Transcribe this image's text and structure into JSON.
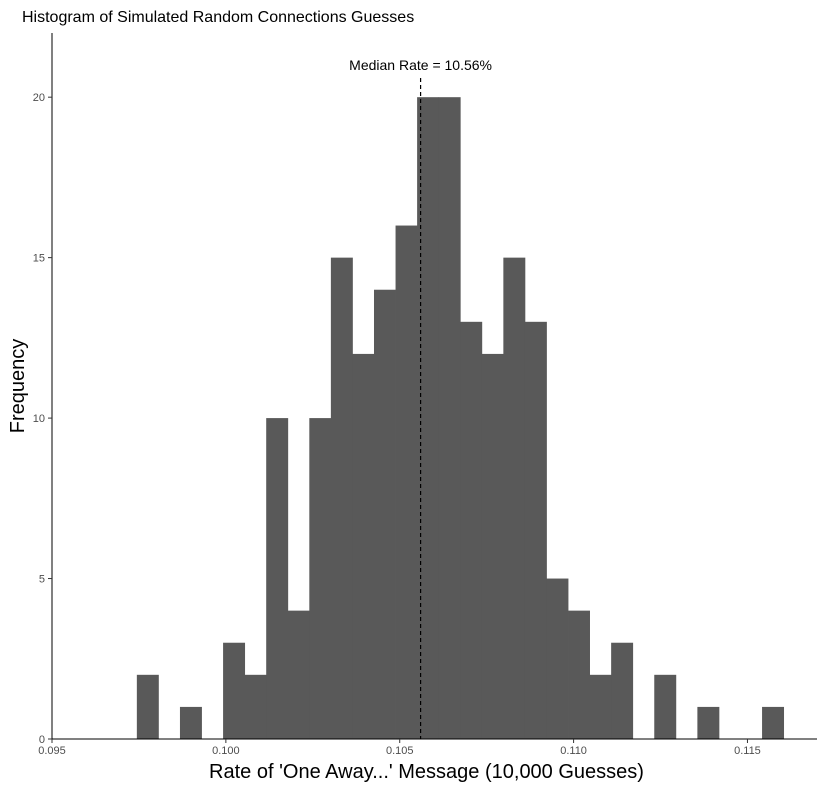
{
  "chart_data": {
    "type": "bar",
    "title": "Histogram of Simulated Random Connections Guesses",
    "xlabel": "Rate of 'One Away...' Message (10,000 Guesses)",
    "ylabel": "Frequency",
    "xlim": [
      0.095,
      0.117
    ],
    "ylim": [
      0,
      22
    ],
    "x_ticks": [
      0.095,
      0.1,
      0.105,
      0.11,
      0.115
    ],
    "x_tick_labels": [
      "0.095",
      "0.100",
      "0.105",
      "0.110",
      "0.115"
    ],
    "y_ticks": [
      0,
      5,
      10,
      15,
      20
    ],
    "y_tick_labels": [
      "0",
      "5",
      "10",
      "15",
      "20"
    ],
    "bin_width": 0.00062,
    "bins": [
      {
        "x": 0.09775,
        "count": 2
      },
      {
        "x": 0.09837,
        "count": 0
      },
      {
        "x": 0.09899,
        "count": 1
      },
      {
        "x": 0.09961,
        "count": 0
      },
      {
        "x": 0.10023,
        "count": 3
      },
      {
        "x": 0.10085,
        "count": 2
      },
      {
        "x": 0.10147,
        "count": 10
      },
      {
        "x": 0.10209,
        "count": 4
      },
      {
        "x": 0.10271,
        "count": 10
      },
      {
        "x": 0.10333,
        "count": 15
      },
      {
        "x": 0.10395,
        "count": 12
      },
      {
        "x": 0.10457,
        "count": 14
      },
      {
        "x": 0.10519,
        "count": 16
      },
      {
        "x": 0.10581,
        "count": 20
      },
      {
        "x": 0.10643,
        "count": 20
      },
      {
        "x": 0.10705,
        "count": 13
      },
      {
        "x": 0.10767,
        "count": 12
      },
      {
        "x": 0.10829,
        "count": 15
      },
      {
        "x": 0.10891,
        "count": 13
      },
      {
        "x": 0.10953,
        "count": 5
      },
      {
        "x": 0.11015,
        "count": 4
      },
      {
        "x": 0.11077,
        "count": 2
      },
      {
        "x": 0.11139,
        "count": 3
      },
      {
        "x": 0.11201,
        "count": 0
      },
      {
        "x": 0.11263,
        "count": 2
      },
      {
        "x": 0.11325,
        "count": 0
      },
      {
        "x": 0.11387,
        "count": 1
      },
      {
        "x": 0.11449,
        "count": 0
      },
      {
        "x": 0.11511,
        "count": 0
      },
      {
        "x": 0.11573,
        "count": 1
      }
    ],
    "median": 0.1056,
    "median_label": "Median Rate = 10.56%",
    "bar_color": "#595959",
    "grid": false
  }
}
